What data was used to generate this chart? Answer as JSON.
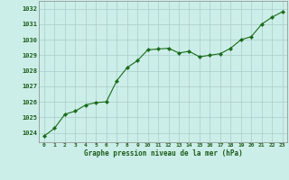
{
  "x": [
    0,
    1,
    2,
    3,
    4,
    5,
    6,
    7,
    8,
    9,
    10,
    11,
    12,
    13,
    14,
    15,
    16,
    17,
    18,
    19,
    20,
    21,
    22,
    23
  ],
  "y": [
    1023.8,
    1024.3,
    1025.2,
    1025.4,
    1025.8,
    1025.95,
    1026.0,
    1027.35,
    1028.2,
    1028.65,
    1029.35,
    1029.4,
    1029.45,
    1029.15,
    1029.25,
    1028.9,
    1029.0,
    1029.1,
    1029.45,
    1030.0,
    1030.2,
    1031.0,
    1031.45,
    1031.8
  ],
  "line_color": "#1a6b1a",
  "marker": "D",
  "marker_size": 2.2,
  "bg_color": "#cceee8",
  "grid_color": "#aacccc",
  "title": "Graphe pression niveau de la mer (hPa)",
  "title_color": "#1a5c1a",
  "xlabel_ticks": [
    "0",
    "1",
    "2",
    "3",
    "4",
    "5",
    "6",
    "7",
    "8",
    "9",
    "10",
    "11",
    "12",
    "13",
    "14",
    "15",
    "16",
    "17",
    "18",
    "19",
    "20",
    "21",
    "22",
    "23"
  ],
  "ytick_min": 1024,
  "ytick_max": 1032,
  "ytick_step": 1,
  "xlim": [
    -0.5,
    23.5
  ],
  "ylim": [
    1023.4,
    1032.5
  ]
}
